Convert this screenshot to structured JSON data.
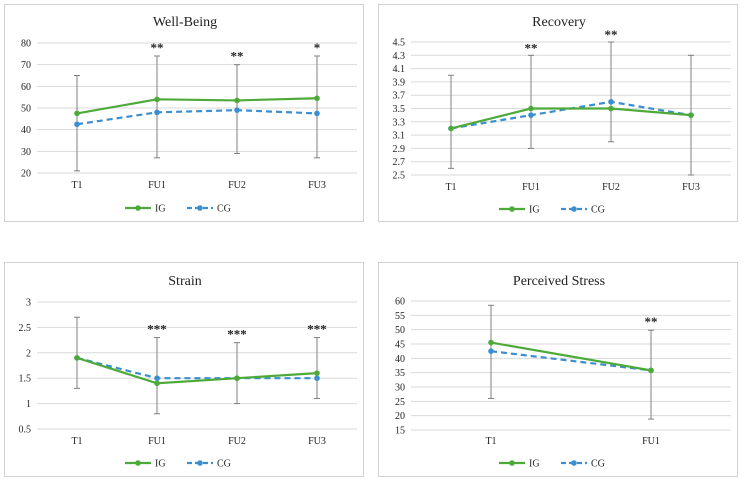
{
  "colors": {
    "IG": "#4daa3a",
    "CG": "#3b8fd0",
    "grid": "#d9d9d9",
    "error_bar": "#7f7f7f"
  },
  "chart_data": [
    {
      "type": "line",
      "title": "Well-Being",
      "categories": [
        "T1",
        "FU1",
        "FU2",
        "FU3"
      ],
      "ylim": [
        20,
        80
      ],
      "yticks": [
        "20",
        "30",
        "40",
        "50",
        "60",
        "70",
        "80"
      ],
      "grid": true,
      "legend": "bottom",
      "series": [
        {
          "name": "IG",
          "style": "solid",
          "values": [
            47.5,
            54,
            53.5,
            54.5
          ],
          "error_upper": [
            65,
            74,
            70,
            74
          ],
          "error_lower": [
            21,
            27,
            29,
            27
          ]
        },
        {
          "name": "CG",
          "style": "dashed",
          "values": [
            42.5,
            48,
            49,
            47.5
          ]
        }
      ],
      "annotations": [
        "",
        "**",
        "**",
        "*"
      ]
    },
    {
      "type": "line",
      "title": "Recovery",
      "categories": [
        "T1",
        "FU1",
        "FU2",
        "FU3"
      ],
      "ylim": [
        2.5,
        4.5
      ],
      "yticks": [
        "2.5",
        "2.7",
        "2.9",
        "3.1",
        "3.3",
        "3.5",
        "3.7",
        "3.9",
        "4.1",
        "4.3",
        "4.5"
      ],
      "grid": true,
      "legend": "bottom",
      "series": [
        {
          "name": "IG",
          "style": "solid",
          "values": [
            3.2,
            3.5,
            3.5,
            3.4
          ],
          "error_upper": [
            4.0,
            4.3,
            4.5,
            4.3
          ],
          "error_lower": [
            2.6,
            2.9,
            3.0,
            2.5
          ]
        },
        {
          "name": "CG",
          "style": "dashed",
          "values": [
            3.2,
            3.4,
            3.6,
            3.4
          ]
        }
      ],
      "annotations": [
        "",
        "**",
        "**",
        ""
      ]
    },
    {
      "type": "line",
      "title": "Strain",
      "categories": [
        "T1",
        "FU1",
        "FU2",
        "FU3"
      ],
      "ylim": [
        0.5,
        3
      ],
      "yticks": [
        "0.5",
        "1",
        "1.5",
        "2",
        "2.5",
        "3"
      ],
      "grid": true,
      "legend": "bottom",
      "series": [
        {
          "name": "IG",
          "style": "solid",
          "values": [
            1.9,
            1.4,
            1.5,
            1.6
          ],
          "error_upper": [
            2.7,
            2.3,
            2.2,
            2.3
          ],
          "error_lower": [
            1.3,
            0.8,
            1.0,
            1.1
          ]
        },
        {
          "name": "CG",
          "style": "dashed",
          "values": [
            1.9,
            1.5,
            1.5,
            1.5
          ]
        }
      ],
      "annotations": [
        "",
        "***",
        "***",
        "***"
      ]
    },
    {
      "type": "line",
      "title": "Perceived Stress",
      "categories": [
        "T1",
        "FU1"
      ],
      "ylim": [
        15,
        60
      ],
      "yticks": [
        "15",
        "20",
        "25",
        "30",
        "35",
        "40",
        "45",
        "50",
        "55",
        "60"
      ],
      "grid": true,
      "legend": "bottom",
      "series": [
        {
          "name": "IG",
          "style": "solid",
          "values": [
            45.5,
            35.8
          ],
          "error_upper": [
            58.5,
            49.8
          ],
          "error_lower": [
            26,
            18.8
          ]
        },
        {
          "name": "CG",
          "style": "dashed",
          "values": [
            42.5,
            35.8
          ]
        }
      ],
      "annotations": [
        "",
        "**"
      ]
    }
  ]
}
